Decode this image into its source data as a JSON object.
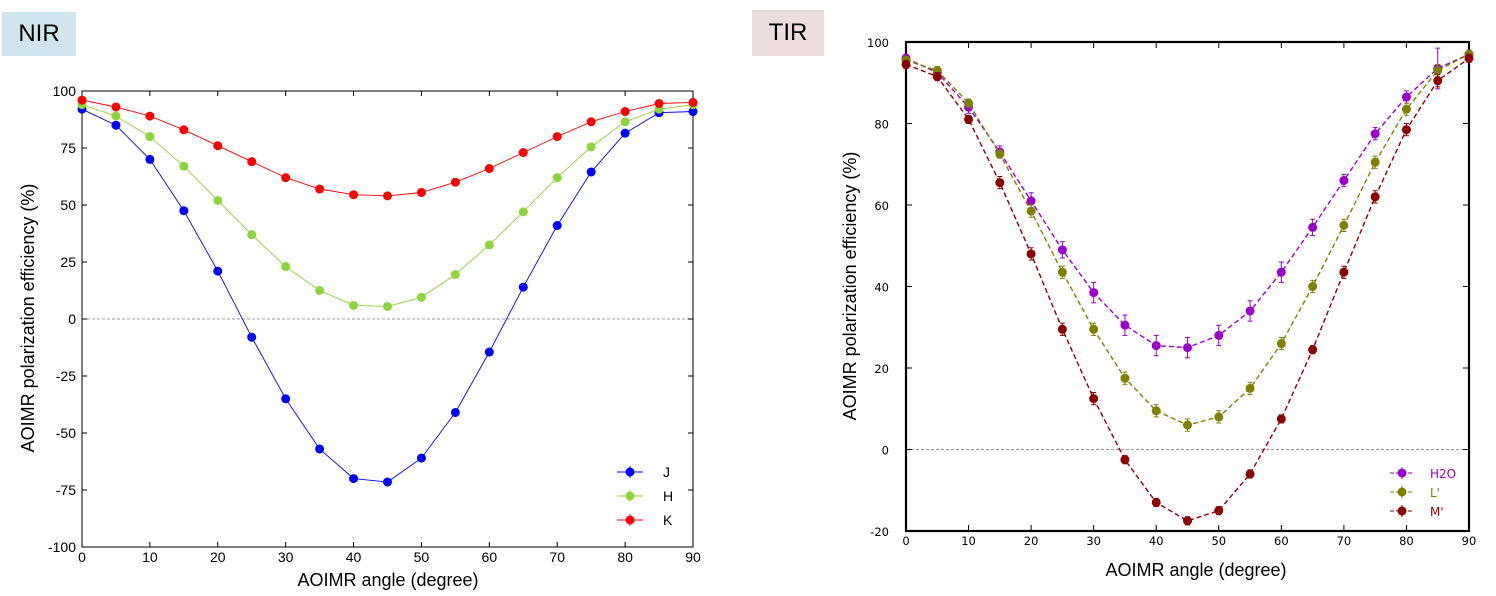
{
  "panels": {
    "left_label": "NIR",
    "right_label": "TIR"
  },
  "colors": {
    "nir_label_bg": "#d0e5ec",
    "tir_label_bg": "#eddede"
  },
  "chart_data": [
    {
      "type": "line",
      "xlabel": "AOIMR angle (degree)",
      "ylabel": "AOIMR polarization efficiency (%)",
      "xlim": [
        0,
        90
      ],
      "ylim": [
        -100,
        100
      ],
      "xticks": [
        0,
        10,
        20,
        30,
        40,
        50,
        60,
        70,
        80,
        90
      ],
      "yticks": [
        -100,
        -75,
        -50,
        -25,
        0,
        25,
        50,
        75,
        100
      ],
      "grid": false,
      "reference_line": 0,
      "legend_position": "bottom-right",
      "x": [
        0,
        5,
        10,
        15,
        20,
        25,
        30,
        35,
        40,
        45,
        50,
        55,
        60,
        65,
        70,
        75,
        80,
        85,
        90
      ],
      "series": [
        {
          "name": "J",
          "color": "#0000ff",
          "values": [
            92,
            85,
            70,
            47.5,
            21,
            -8,
            -35,
            -57,
            -70,
            -71.5,
            -61,
            -41,
            -14.5,
            14,
            41,
            64.5,
            81.5,
            90.5,
            91
          ]
        },
        {
          "name": "H",
          "color": "#8ed43c",
          "values": [
            94,
            89,
            80,
            67,
            52,
            37,
            23,
            12.5,
            6,
            5.5,
            9.5,
            19.5,
            32.5,
            47,
            62,
            75.5,
            86.5,
            92,
            94
          ]
        },
        {
          "name": "K",
          "color": "#ff0000",
          "values": [
            96,
            93,
            89,
            83,
            76,
            69,
            62,
            57,
            54.5,
            54,
            55.5,
            60,
            66,
            73,
            80,
            86.5,
            91,
            94.5,
            95
          ]
        }
      ]
    },
    {
      "type": "line",
      "xlabel": "AOIMR angle (degree)",
      "ylabel": "AOIMR polarization efficiency (%)",
      "xlim": [
        0,
        90
      ],
      "ylim": [
        -20,
        100
      ],
      "xticks": [
        0,
        10,
        20,
        30,
        40,
        50,
        60,
        70,
        80,
        90
      ],
      "yticks": [
        -20,
        0,
        20,
        40,
        60,
        80,
        100
      ],
      "grid": false,
      "reference_line": 0,
      "legend_position": "bottom-right",
      "x": [
        0,
        5,
        10,
        15,
        20,
        25,
        30,
        35,
        40,
        45,
        50,
        55,
        60,
        65,
        70,
        75,
        80,
        85,
        90
      ],
      "series": [
        {
          "name": "H2O",
          "color": "#9900cc",
          "values": [
            96,
            92.5,
            84,
            73,
            61,
            49,
            38.5,
            30.5,
            25.5,
            25,
            28,
            34,
            43.5,
            54.5,
            66,
            77.5,
            86.5,
            93.5,
            97
          ],
          "errors": [
            1,
            1,
            1.5,
            1.5,
            2,
            2,
            2.5,
            2.5,
            2.5,
            2.5,
            2.5,
            2.5,
            2.5,
            2,
            1.5,
            1.5,
            1.5,
            5,
            1
          ]
        },
        {
          "name": "L'",
          "color": "#808000",
          "values": [
            95.5,
            93,
            85,
            72.5,
            58.5,
            43.5,
            29.5,
            17.5,
            9.5,
            6,
            8,
            15,
            26,
            40,
            55,
            70.5,
            83.5,
            93,
            97
          ],
          "errors": [
            1,
            1,
            1,
            1,
            1.5,
            1.5,
            1.5,
            1.5,
            1.5,
            1.5,
            1.5,
            1.5,
            1.5,
            1.5,
            1.5,
            1.5,
            1.5,
            1.5,
            1
          ]
        },
        {
          "name": "M'",
          "color": "#8b0000",
          "values": [
            94.5,
            91.5,
            81,
            65.5,
            48,
            29.5,
            12.5,
            -2.5,
            -13,
            -17.5,
            -15,
            -6,
            7.5,
            24.5,
            43.5,
            62,
            78.5,
            90.5,
            96
          ],
          "errors": [
            1,
            1,
            1,
            1.5,
            1.5,
            1.5,
            1.5,
            1,
            1,
            1,
            1,
            1,
            1,
            1,
            1.5,
            1.5,
            1.5,
            1.5,
            1
          ]
        }
      ]
    }
  ]
}
